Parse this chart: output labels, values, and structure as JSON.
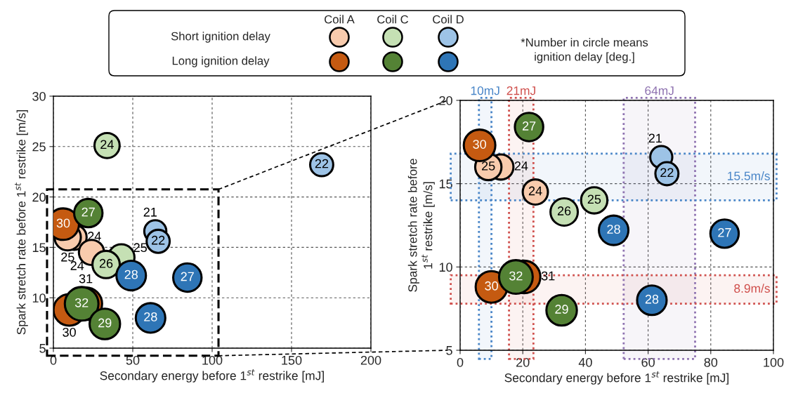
{
  "chart_data": [
    {
      "type": "bubble",
      "xlabel": "Secondary energy before 1$^{st}$ restrike [mJ]",
      "ylabel": "Spark stretch rate before 1$^{st}$ restrike [m/s]",
      "xlim": [
        0,
        200
      ],
      "xticks": [
        0,
        50,
        100,
        150,
        200
      ],
      "ylim": [
        5,
        30
      ],
      "yticks": [
        5,
        10,
        15,
        20,
        25,
        30
      ],
      "grid": true,
      "annotations": [
        "Coil A",
        "Coil C",
        "Coil D",
        "Short ignition delay",
        "Long ignition delay",
        "*Number in circle means\nignition delay [deg.]",
        {
          "text": "24",
          "x": 13.0,
          "y": 16.0
        },
        {
          "text": "25",
          "x": 9.0,
          "y": 16.0
        },
        {
          "text": "24",
          "x": 24.0,
          "y": 14.5
        },
        {
          "text": "24",
          "x": 33.8,
          "y": 25.1
        },
        {
          "text": "25",
          "x": 42.8,
          "y": 14.0
        },
        {
          "text": "26",
          "x": 33.2,
          "y": 13.3
        },
        {
          "text": "22",
          "x": 169.0,
          "y": 23.2
        },
        {
          "text": "21",
          "x": 64.2,
          "y": 16.6
        },
        {
          "text": "22",
          "x": 66.0,
          "y": 15.6
        },
        {
          "text": "30",
          "x": 6.2,
          "y": 17.3
        },
        {
          "text": "30",
          "x": 10.0,
          "y": 8.8
        },
        {
          "text": "31",
          "x": 20.4,
          "y": 9.4
        },
        {
          "text": "27",
          "x": 22.0,
          "y": 18.4
        },
        {
          "text": "32",
          "x": 17.8,
          "y": 9.4
        },
        {
          "text": "29",
          "x": 32.4,
          "y": 7.4
        },
        {
          "text": "28",
          "x": 49.0,
          "y": 12.2
        },
        {
          "text": "27",
          "x": 84.4,
          "y": 12.0
        },
        {
          "text": "28",
          "x": 61.2,
          "y": 8.0
        }
      ],
      "series": [
        {
          "color": "#f8cbad",
          "x": [
            13.0,
            9.0,
            24.0
          ],
          "values": [
            16.0,
            16.0,
            14.5
          ],
          "sizes": [
            0.56,
            0.61,
            0.56
          ]
        },
        {
          "color": "#c5e0b4",
          "x": [
            33.8,
            42.8,
            33.2
          ],
          "values": [
            25.1,
            14.0,
            13.3
          ],
          "sizes": [
            0.56,
            0.61,
            0.66
          ]
        },
        {
          "color": "#9dc3e6",
          "x": [
            169.0,
            64.2,
            66.0
          ],
          "values": [
            23.2,
            16.6,
            15.6
          ],
          "sizes": [
            0.47,
            0.43,
            0.47
          ]
        },
        {
          "color": "#c55a11",
          "x": [
            6.2,
            10.0,
            20.4
          ],
          "values": [
            17.3,
            8.8,
            9.4
          ],
          "sizes": [
            0.88,
            0.88,
            0.94
          ]
        },
        {
          "color": "#548235",
          "x": [
            22.0,
            17.8,
            32.4
          ],
          "values": [
            18.4,
            9.4,
            7.4
          ],
          "sizes": [
            0.71,
            1.0,
            0.82
          ]
        },
        {
          "color": "#2e75b6",
          "x": [
            49.0,
            84.4,
            61.2
          ],
          "values": [
            12.2,
            12.0,
            8.0
          ],
          "sizes": [
            0.77,
            0.71,
            0.77
          ]
        }
      ]
    },
    {
      "type": "bubble",
      "xlabel": "Secondary energy before 1$^{st}$ restrike [mJ]",
      "ylabel": "Spark stretch rate before\n1$^{st}$ restrike [m/s]",
      "xlim": [
        0,
        100
      ],
      "xticks": [
        0,
        20,
        40,
        60,
        80,
        100
      ],
      "ylim": [
        5,
        20
      ],
      "yticks": [
        5,
        10,
        15,
        20
      ],
      "grid": true,
      "annotations": [
        {
          "text": "24",
          "x": 13.0,
          "y": 16.0
        },
        {
          "text": "25",
          "x": 9.0,
          "y": 16.0
        },
        {
          "text": "24",
          "x": 24.0,
          "y": 14.5
        },
        {
          "text": "25",
          "x": 42.8,
          "y": 14.0
        },
        {
          "text": "26",
          "x": 33.2,
          "y": 13.3
        },
        {
          "text": "21",
          "x": 64.2,
          "y": 16.6
        },
        {
          "text": "22",
          "x": 66.0,
          "y": 15.6
        },
        {
          "text": "30",
          "x": 6.2,
          "y": 17.3
        },
        {
          "text": "30",
          "x": 10.0,
          "y": 8.8
        },
        {
          "text": "31",
          "x": 20.4,
          "y": 9.4
        },
        {
          "text": "27",
          "x": 22.0,
          "y": 18.4
        },
        {
          "text": "32",
          "x": 17.8,
          "y": 9.4
        },
        {
          "text": "29",
          "x": 32.4,
          "y": 7.4
        },
        {
          "text": "28",
          "x": 49.0,
          "y": 12.2
        },
        {
          "text": "27",
          "x": 84.4,
          "y": 12.0
        },
        {
          "text": "28",
          "x": 61.2,
          "y": 8.0
        }
      ],
      "bands": [
        {
          "axis": "x",
          "from": 6.0,
          "to": 10.0,
          "label": "10mJ",
          "color": "#4a86c8"
        },
        {
          "axis": "x",
          "from": 15.6,
          "to": 23.4,
          "label": "21mJ",
          "color": "#d0504d"
        },
        {
          "axis": "x",
          "from": 52.2,
          "to": 75.0,
          "label": "64mJ",
          "color": "#8e72b0"
        },
        {
          "axis": "y",
          "from": 14.0,
          "to": 16.8,
          "label": "15.5m/s",
          "color": "#4a86c8"
        },
        {
          "axis": "y",
          "from": 7.8,
          "to": 9.5,
          "label": "8.9m/s",
          "color": "#d0504d"
        }
      ],
      "series": [
        {
          "color": "#f8cbad",
          "x": [
            13.0,
            9.0,
            24.0
          ],
          "values": [
            16.0,
            16.0,
            14.5
          ],
          "sizes": [
            0.56,
            0.61,
            0.56
          ]
        },
        {
          "color": "#c5e0b4",
          "x": [
            42.8,
            33.2
          ],
          "values": [
            14.0,
            13.3
          ],
          "sizes": [
            0.61,
            0.66
          ]
        },
        {
          "color": "#9dc3e6",
          "x": [
            64.2,
            66.0
          ],
          "values": [
            16.6,
            15.6
          ],
          "sizes": [
            0.43,
            0.47
          ]
        },
        {
          "color": "#c55a11",
          "x": [
            6.2,
            10.0,
            20.4
          ],
          "values": [
            17.3,
            8.8,
            9.4
          ],
          "sizes": [
            0.88,
            0.88,
            0.94
          ]
        },
        {
          "color": "#548235",
          "x": [
            22.0,
            17.8,
            32.4
          ],
          "values": [
            18.4,
            9.4,
            7.4
          ],
          "sizes": [
            0.71,
            1.0,
            0.82
          ]
        },
        {
          "color": "#2e75b6",
          "x": [
            49.0,
            84.4,
            61.2
          ],
          "values": [
            12.2,
            12.0,
            8.0
          ],
          "sizes": [
            0.77,
            0.71,
            0.77
          ]
        }
      ]
    }
  ]
}
